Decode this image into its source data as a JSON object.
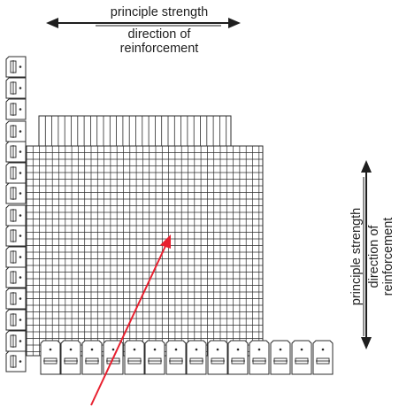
{
  "top_label": {
    "line1": "principle strength",
    "line2": "direction of",
    "line3": "reinforcement"
  },
  "right_label": {
    "line1": "principle strength",
    "line2": "direction of",
    "line3": "reinforcement"
  },
  "colors": {
    "lines": "#2b2b2b",
    "arrow_red": "#e8202f"
  }
}
